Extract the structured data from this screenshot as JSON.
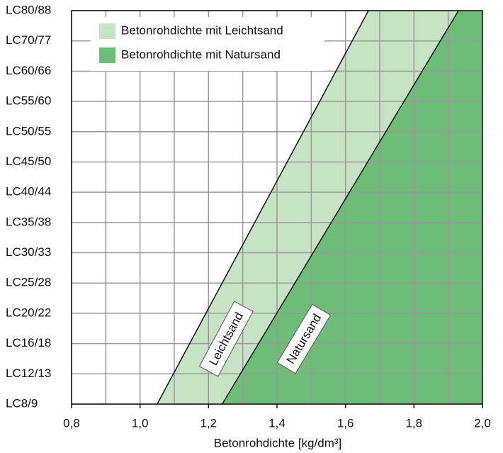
{
  "chart_data": {
    "type": "area",
    "xlabel": "Betonrohdichte [kg/dm³]",
    "xlim": [
      0.8,
      2.0
    ],
    "xticks": [
      {
        "value": 0.8,
        "label": "0,8"
      },
      {
        "value": 1.0,
        "label": "1,0"
      },
      {
        "value": 1.2,
        "label": "1,2"
      },
      {
        "value": 1.4,
        "label": "1,4"
      },
      {
        "value": 1.6,
        "label": "1,6"
      },
      {
        "value": 1.8,
        "label": "1,8"
      },
      {
        "value": 2.0,
        "label": "2,0"
      }
    ],
    "minor_xticks": [
      0.9,
      1.1,
      1.3,
      1.5,
      1.7,
      1.9
    ],
    "categories": [
      "LC8/9",
      "LC12/13",
      "LC16/18",
      "LC20/22",
      "LC25/28",
      "LC30/33",
      "LC35/38",
      "LC40/44",
      "LC45/50",
      "LC50/55",
      "LC55/60",
      "LC60/66",
      "LC70/77",
      "LC80/88"
    ],
    "grid": true,
    "legend": "top-left",
    "series": [
      {
        "name": "Betonrohdichte mit Leichtsand",
        "label": "Leichtsand",
        "color": "#c6e3c4",
        "x": [
          1.05,
          1.667
        ],
        "y": [
          "LC8/9",
          "LC80/88"
        ]
      },
      {
        "name": "Betonrohdichte mit Natursand",
        "label": "Natursand",
        "color": "#6dbd78",
        "x": [
          1.24,
          1.93
        ],
        "y": [
          "LC8/9",
          "LC80/88"
        ]
      }
    ]
  }
}
